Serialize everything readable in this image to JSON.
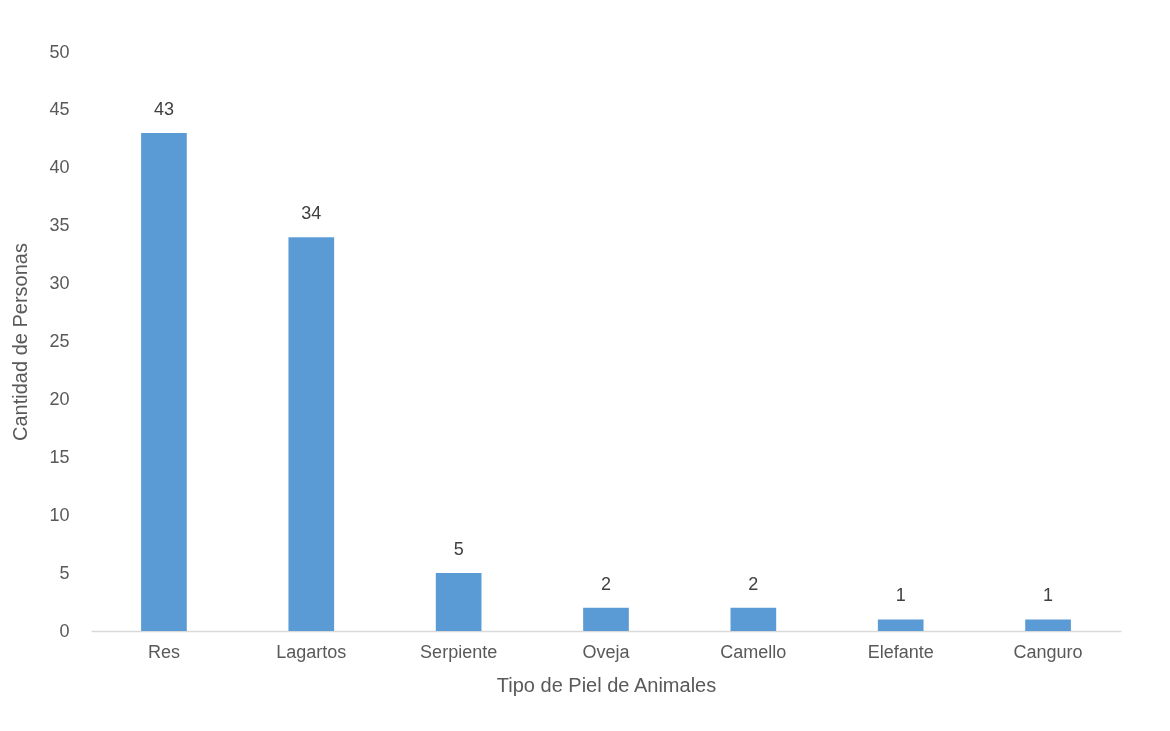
{
  "chart_data": {
    "type": "bar",
    "xlabel": "Tipo de Piel de Animales",
    "ylabel": "Cantidad de Personas",
    "categories": [
      "Res",
      "Lagartos",
      "Serpiente",
      "Oveja",
      "Camello",
      "Elefante",
      "Canguro"
    ],
    "values": [
      43,
      34,
      5,
      2,
      2,
      1,
      1
    ],
    "color": "#5b9bd5",
    "ylim": [
      0,
      50
    ],
    "yticks": [
      0,
      5,
      10,
      15,
      20,
      25,
      30,
      35,
      40,
      45,
      50
    ],
    "grid": false,
    "data_labels": true
  }
}
